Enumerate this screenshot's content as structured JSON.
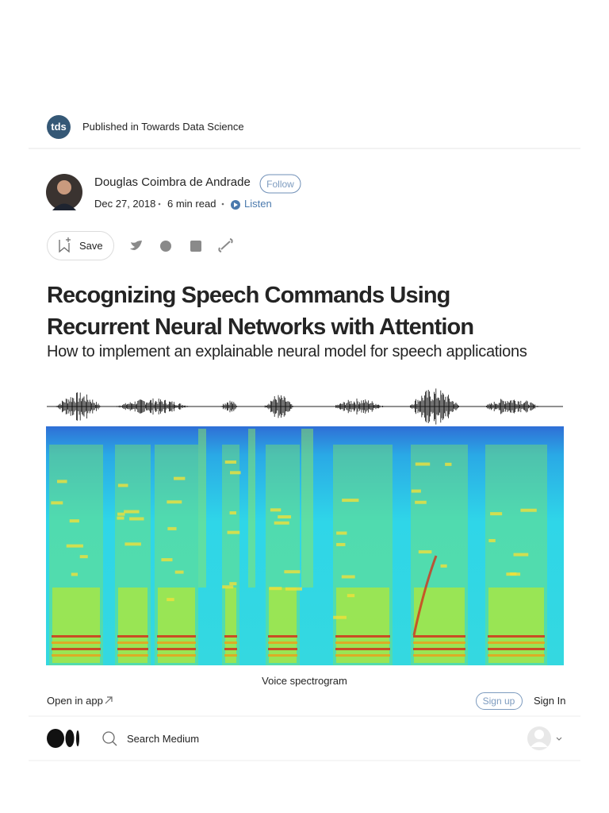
{
  "publication": {
    "logo": "tds",
    "label": "Published in Towards Data Science"
  },
  "author": {
    "name": "Douglas Coimbra de Andrade",
    "follow": "Follow",
    "date": "Dec 27, 2018",
    "read_time": "6 min read",
    "listen": "Listen"
  },
  "actions": {
    "save": "Save"
  },
  "article": {
    "title": "Recognizing Speech Commands Using Recurrent Neural Networks with Attention",
    "subtitle": "How to implement an explainable neural model for speech applications",
    "caption": "Voice spectrogram"
  },
  "bottom_bar": {
    "open_in_app": "Open in app",
    "sign_up": "Sign up",
    "sign_in": "Sign In"
  },
  "nav": {
    "search": "Search Medium"
  }
}
